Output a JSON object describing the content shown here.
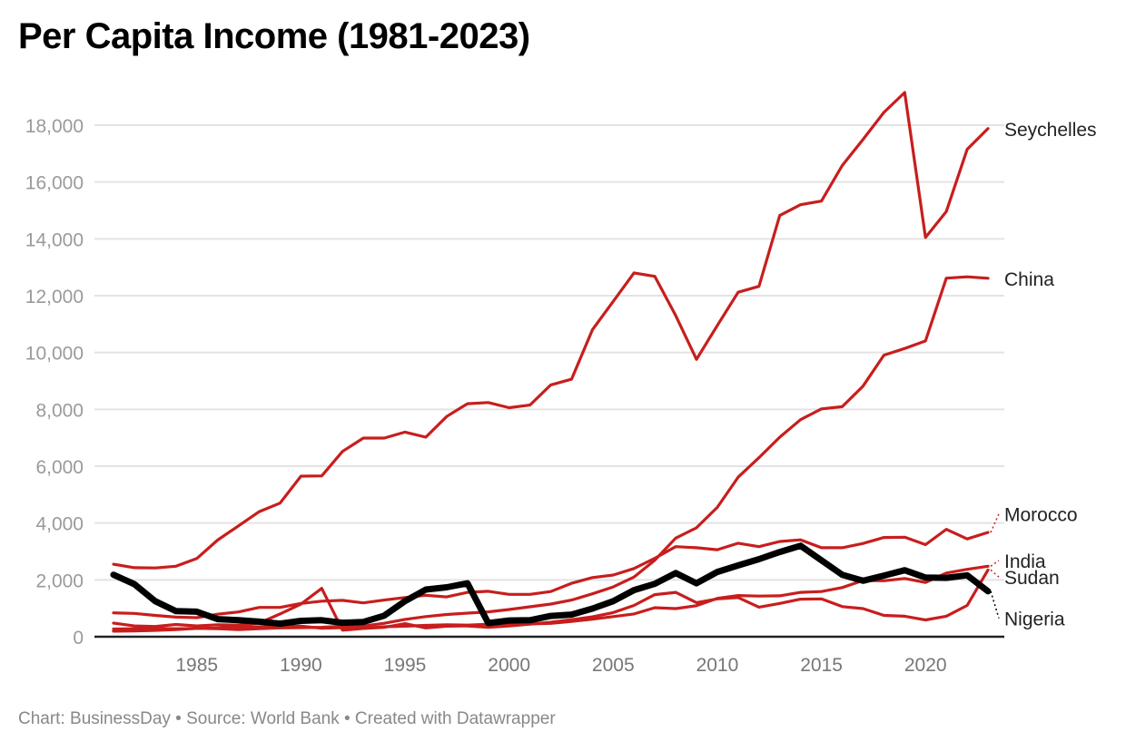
{
  "chart_data": {
    "type": "line",
    "title": "Per Capita Income (1981-2023)",
    "footer": "Chart: BusinessDay • Source: World Bank • Created with Datawrapper",
    "xlabel": "",
    "ylabel": "",
    "xlim": [
      1981,
      2023
    ],
    "ylim": [
      0,
      19500
    ],
    "grid": true,
    "legend": "direct labels at right end of lines",
    "y_ticks": [
      {
        "value": 0,
        "label": "0"
      },
      {
        "value": 2000,
        "label": "2,000"
      },
      {
        "value": 4000,
        "label": "4,000"
      },
      {
        "value": 6000,
        "label": "6,000"
      },
      {
        "value": 8000,
        "label": "8,000"
      },
      {
        "value": 10000,
        "label": "10,000"
      },
      {
        "value": 12000,
        "label": "12,000"
      },
      {
        "value": 14000,
        "label": "14,000"
      },
      {
        "value": 16000,
        "label": "16,000"
      },
      {
        "value": 18000,
        "label": "18,000"
      }
    ],
    "x_ticks": [
      {
        "value": 1985,
        "label": "1985"
      },
      {
        "value": 1990,
        "label": "1990"
      },
      {
        "value": 1995,
        "label": "1995"
      },
      {
        "value": 2000,
        "label": "2000"
      },
      {
        "value": 2005,
        "label": "2005"
      },
      {
        "value": 2010,
        "label": "2010"
      },
      {
        "value": 2015,
        "label": "2015"
      },
      {
        "value": 2020,
        "label": "2020"
      }
    ],
    "x": [
      1981,
      1982,
      1983,
      1984,
      1985,
      1986,
      1987,
      1988,
      1989,
      1990,
      1991,
      1992,
      1993,
      1994,
      1995,
      1996,
      1997,
      1998,
      1999,
      2000,
      2001,
      2002,
      2003,
      2004,
      2005,
      2006,
      2007,
      2008,
      2009,
      2010,
      2011,
      2012,
      2013,
      2014,
      2015,
      2016,
      2017,
      2018,
      2019,
      2020,
      2021,
      2022,
      2023
    ],
    "series": [
      {
        "name": "Seychelles",
        "color": "#c71e1d",
        "highlight": false,
        "label_offset": 0,
        "values": [
          2550,
          2430,
          2420,
          2480,
          2750,
          3400,
          3900,
          4400,
          4700,
          5650,
          5660,
          6520,
          6990,
          6990,
          7200,
          7020,
          7750,
          8200,
          8240,
          8060,
          8150,
          8860,
          9060,
          10800,
          11800,
          12800,
          12680,
          11300,
          9760,
          10950,
          12120,
          12330,
          14820,
          15200,
          15330,
          16580,
          17500,
          18450,
          19150,
          14050,
          14960,
          17150,
          17880
        ]
      },
      {
        "name": "China",
        "color": "#c71e1d",
        "highlight": false,
        "label_offset": 0,
        "values": [
          195,
          203,
          225,
          250,
          294,
          282,
          252,
          284,
          311,
          318,
          333,
          366,
          377,
          473,
          610,
          709,
          782,
          829,
          873,
          959,
          1053,
          1149,
          1289,
          1509,
          1753,
          2099,
          2694,
          3468,
          3832,
          4550,
          5614,
          6301,
          7020,
          7636,
          8016,
          8094,
          8817,
          9905,
          10143,
          10409,
          12617,
          12663,
          12614
        ]
      },
      {
        "name": "Morocco",
        "color": "#c71e1d",
        "highlight": false,
        "label_offset": 650,
        "values": [
          840,
          820,
          750,
          690,
          670,
          790,
          870,
          1030,
          1030,
          1170,
          1250,
          1280,
          1190,
          1290,
          1380,
          1460,
          1400,
          1560,
          1600,
          1490,
          1490,
          1590,
          1880,
          2080,
          2170,
          2400,
          2760,
          3170,
          3130,
          3060,
          3290,
          3170,
          3350,
          3410,
          3130,
          3130,
          3280,
          3490,
          3500,
          3240,
          3780,
          3440,
          3670
        ]
      },
      {
        "name": "India",
        "color": "#c71e1d",
        "highlight": false,
        "label_offset": 200,
        "values": [
          270,
          280,
          290,
          280,
          290,
          310,
          340,
          350,
          350,
          370,
          300,
          320,
          300,
          350,
          370,
          400,
          420,
          410,
          440,
          440,
          450,
          470,
          540,
          620,
          710,
          800,
          1020,
          990,
          1090,
          1350,
          1450,
          1430,
          1440,
          1560,
          1590,
          1730,
          1980,
          1970,
          2050,
          1910,
          2240,
          2370,
          2480
        ]
      },
      {
        "name": "Sudan",
        "color": "#c71e1d",
        "highlight": false,
        "label_offset": -250,
        "values": [
          480,
          380,
          360,
          430,
          380,
          420,
          410,
          480,
          800,
          1150,
          1700,
          230,
          290,
          330,
          460,
          310,
          370,
          380,
          330,
          380,
          440,
          510,
          600,
          700,
          850,
          1100,
          1480,
          1560,
          1200,
          1330,
          1380,
          1040,
          1170,
          1320,
          1330,
          1060,
          990,
          750,
          720,
          590,
          720,
          1100,
          2350
        ]
      },
      {
        "name": "Nigeria",
        "color": "#000000",
        "highlight": true,
        "label_offset": -950,
        "values": [
          2180,
          1850,
          1250,
          900,
          880,
          620,
          580,
          530,
          460,
          560,
          580,
          490,
          520,
          740,
          1250,
          1660,
          1740,
          1880,
          480,
          570,
          580,
          730,
          780,
          990,
          1250,
          1640,
          1860,
          2240,
          1880,
          2280,
          2510,
          2730,
          2980,
          3200,
          2690,
          2180,
          1970,
          2150,
          2340,
          2080,
          2070,
          2160,
          1600
        ]
      }
    ]
  }
}
